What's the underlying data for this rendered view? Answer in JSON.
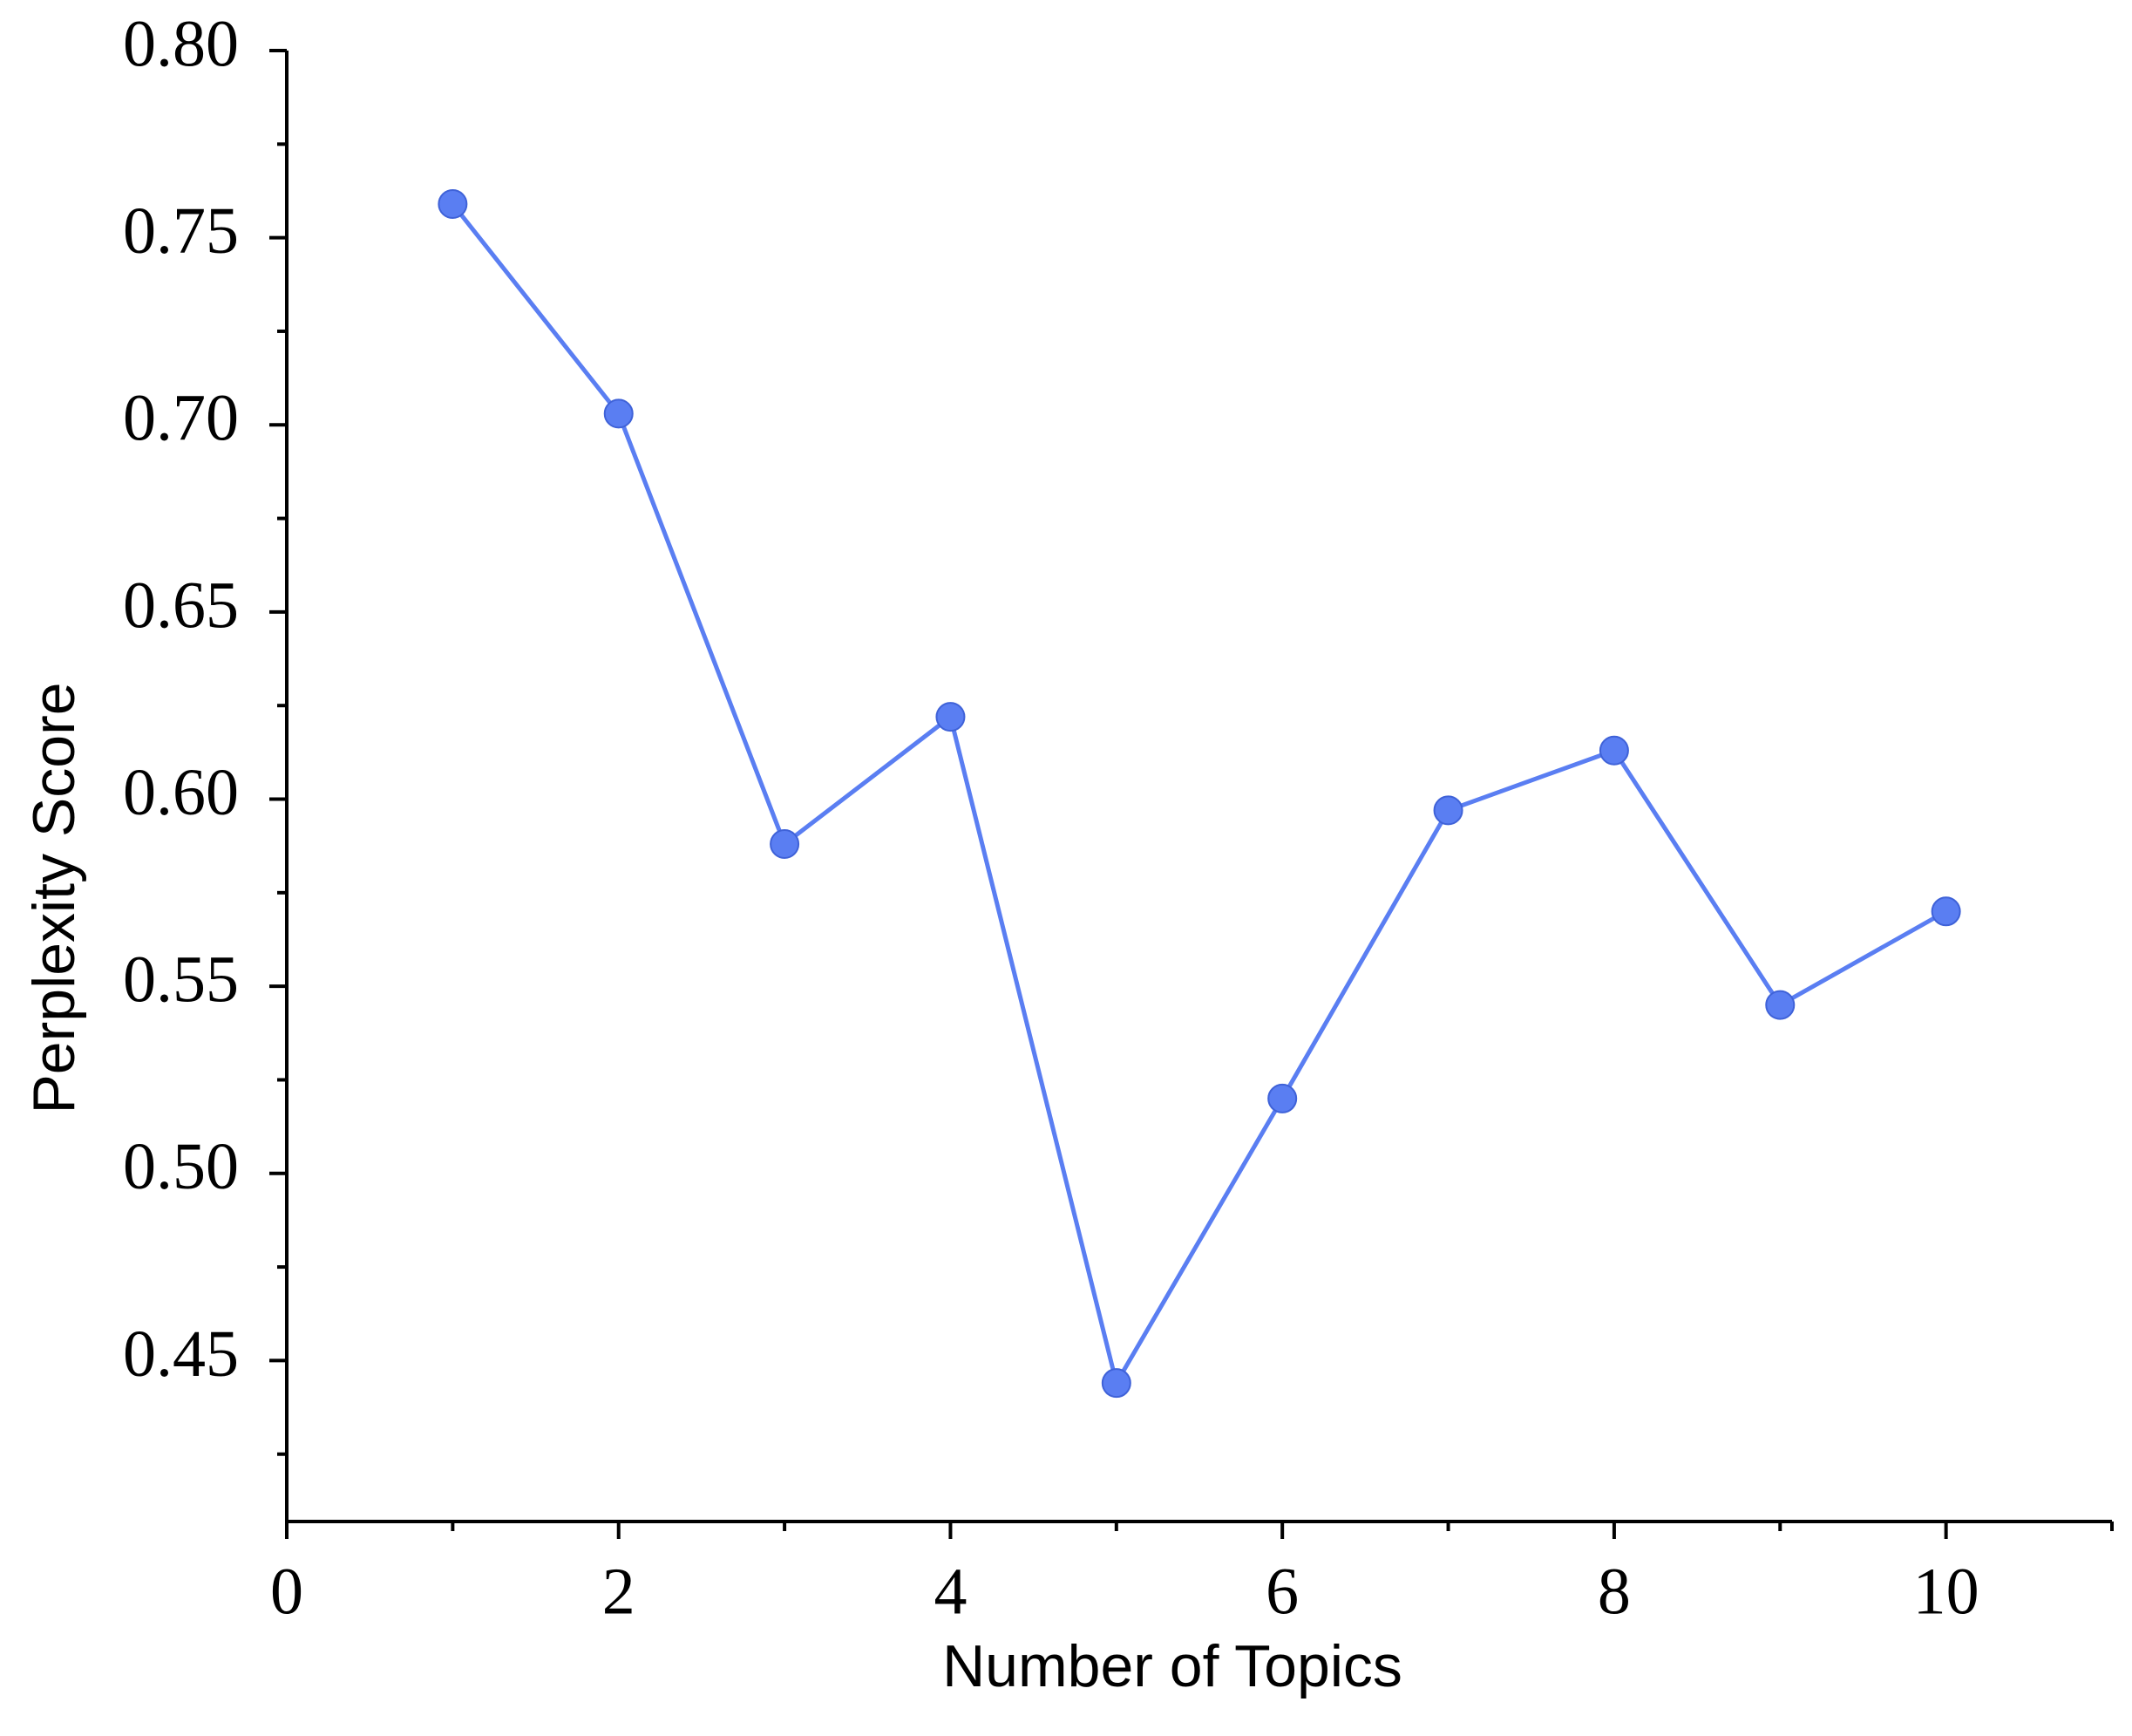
{
  "chart_data": {
    "type": "line",
    "x_label": "Number of Topics",
    "y_label": "Perplexity Score",
    "x": [
      1,
      2,
      3,
      4,
      5,
      6,
      7,
      8,
      9,
      10
    ],
    "series": [
      {
        "color": "#5a7ef2",
        "values": [
          0.759,
          0.703,
          0.588,
          0.622,
          0.444,
          0.52,
          0.597,
          0.613,
          0.545,
          0.57
        ]
      }
    ],
    "xlim": [
      0,
      11
    ],
    "xticks": [
      0,
      2,
      4,
      6,
      8,
      10
    ],
    "ylim": [
      0.407,
      0.8
    ],
    "yticks": [
      {
        "value": 0.45,
        "label": "0.45"
      },
      {
        "value": 0.5,
        "label": "0.50"
      },
      {
        "value": 0.55,
        "label": "0.55"
      },
      {
        "value": 0.6,
        "label": "0.60"
      },
      {
        "value": 0.65,
        "label": "0.65"
      },
      {
        "value": 0.7,
        "label": "0.70"
      },
      {
        "value": 0.75,
        "label": "0.75"
      },
      {
        "value": 0.8,
        "label": "0.80"
      }
    ],
    "grid": false
  }
}
